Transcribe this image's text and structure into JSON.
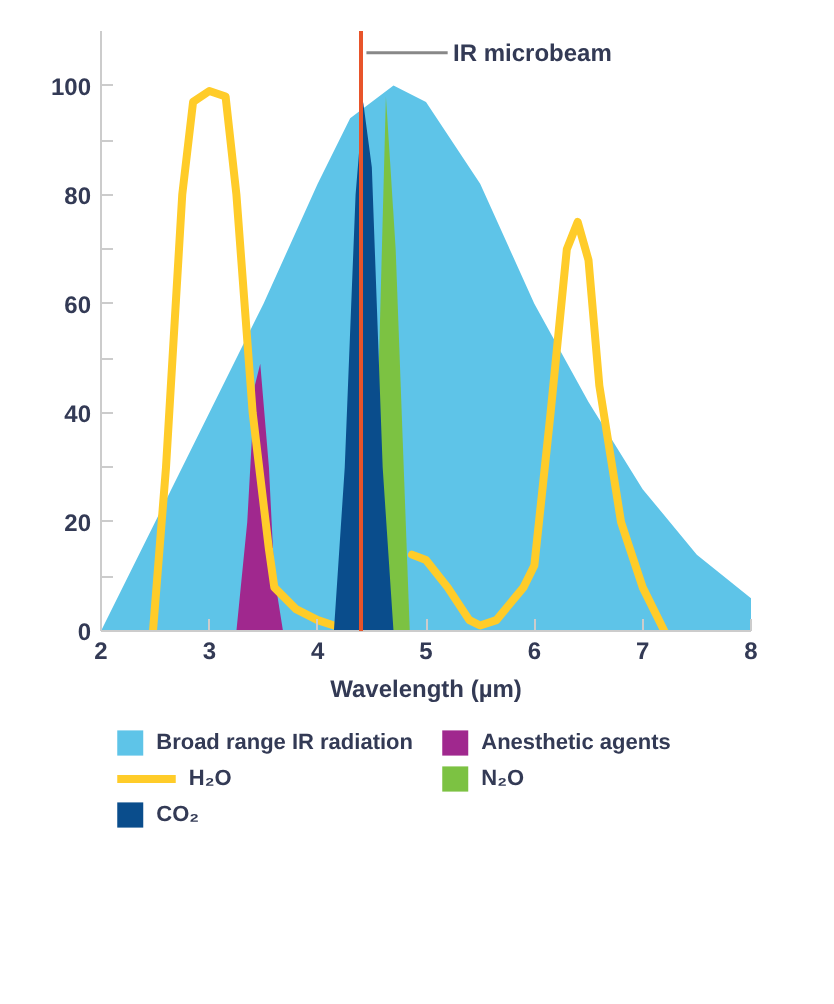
{
  "chart_data": {
    "type": "area",
    "xlabel": "Wavelength (µm)",
    "xlim": [
      2,
      8
    ],
    "xticks": [
      2,
      3,
      4,
      5,
      6,
      7,
      8
    ],
    "ylim": [
      0,
      110
    ],
    "yticks": [
      0,
      {
        "value": 10,
        "label": null
      },
      20,
      {
        "value": 30,
        "label": null
      },
      40,
      {
        "value": 50,
        "label": null
      },
      60,
      {
        "value": 70,
        "label": null
      },
      80,
      {
        "value": 90,
        "label": null
      },
      100
    ],
    "grid": false,
    "legend": "bottom",
    "series": [
      {
        "name": "Broad range IR radiation",
        "color": "#5ec4e8",
        "x": [
          2,
          2.5,
          3,
          3.5,
          4,
          4.3,
          4.7,
          5,
          5.5,
          6,
          6.5,
          7,
          7.5,
          8
        ],
        "values": [
          0,
          20,
          40,
          60,
          82,
          94,
          100,
          97,
          82,
          60,
          42,
          26,
          14,
          6
        ]
      },
      {
        "name": "Anesthetic agents",
        "color": "#a0288e",
        "x": [
          3.25,
          3.35,
          3.42,
          3.47,
          3.55,
          3.6,
          3.68
        ],
        "values": [
          0,
          20,
          45,
          49,
          30,
          10,
          0
        ]
      },
      {
        "name": "H₂O",
        "type": "line",
        "color": "#ffcc29",
        "x": [
          2.48,
          2.6,
          2.75,
          2.85,
          3,
          3.15,
          3.25,
          3.4,
          3.55,
          3.6,
          3.8,
          4.0,
          4.15,
          4.4,
          4.87,
          5.0,
          5.2,
          5.4,
          5.5,
          5.65,
          5.9,
          6.0,
          6.15,
          6.3,
          6.4,
          6.5,
          6.6,
          6.8,
          7.0,
          7.2
        ],
        "values": [
          0,
          30,
          80,
          97,
          99,
          98,
          80,
          40,
          15,
          8,
          4,
          2,
          1,
          null,
          14,
          13,
          8,
          2,
          1,
          2,
          8,
          12,
          40,
          70,
          75,
          68,
          45,
          20,
          8,
          0
        ]
      },
      {
        "name": "N₂O",
        "color": "#7cc242",
        "x": [
          4.5,
          4.63,
          4.72,
          4.85
        ],
        "values": [
          0,
          98,
          70,
          0
        ]
      },
      {
        "name": "CO₂",
        "color": "#0a4d8c",
        "x": [
          4.15,
          4.25,
          4.35,
          4.42,
          4.5,
          4.6,
          4.7
        ],
        "values": [
          0,
          30,
          80,
          97,
          85,
          30,
          0
        ]
      }
    ],
    "ref_lines": [
      {
        "axis": "x",
        "value": 4.4,
        "label": "IR microbeam",
        "color": "#e8542a"
      }
    ]
  }
}
